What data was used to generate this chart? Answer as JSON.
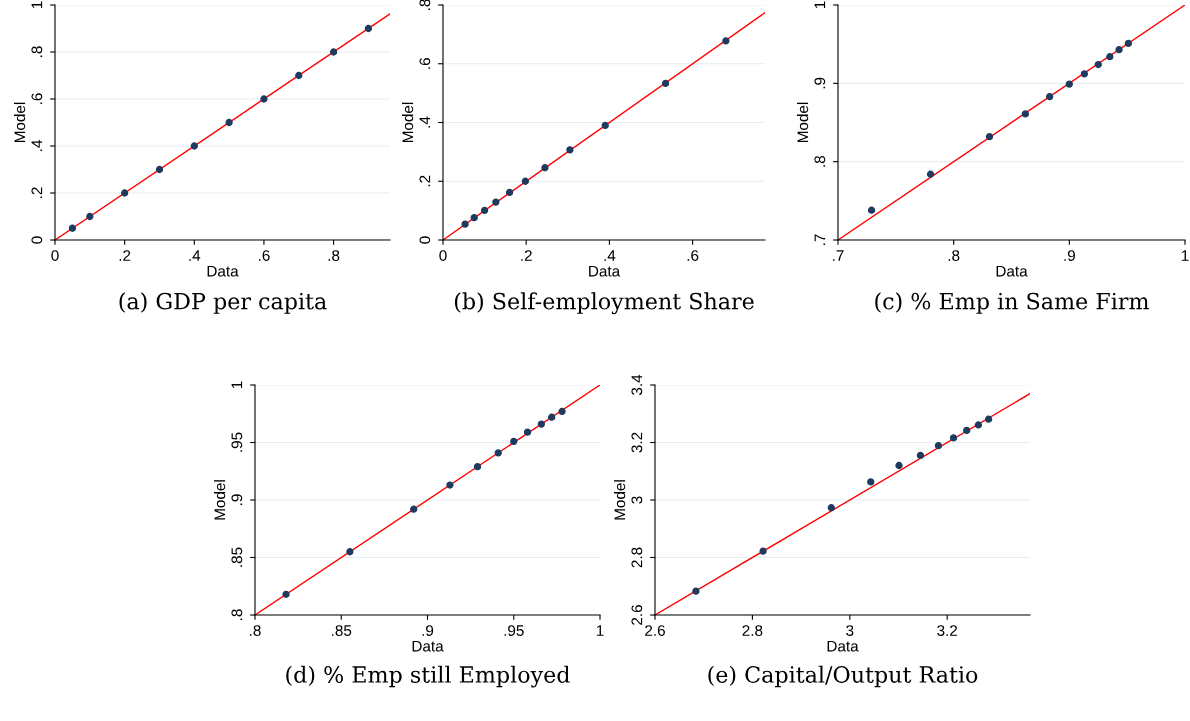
{
  "chart_data": [
    {
      "type": "scatter",
      "title": "(a) GDP per capita",
      "xlabel": "Data",
      "ylabel": "Model",
      "grid": "y",
      "xlim": [
        0,
        0.962
      ],
      "ylim": [
        0,
        1
      ],
      "xticks": [
        0,
        {
          "value": 0.2,
          "label": ".2"
        },
        {
          "value": 0.4,
          "label": ".4"
        },
        {
          "value": 0.6,
          "label": ".6"
        },
        {
          "value": 0.8,
          "label": ".8"
        }
      ],
      "yticks": [
        0,
        {
          "value": 0.2,
          "label": ".2"
        },
        {
          "value": 0.4,
          "label": ".4"
        },
        {
          "value": 0.6,
          "label": ".6"
        },
        {
          "value": 0.8,
          "label": ".8"
        },
        1
      ],
      "series": [
        {
          "type": "scatter",
          "marker": "circle",
          "color": "#1f3a5f",
          "x": [
            0.05,
            0.1,
            0.2,
            0.3,
            0.4,
            0.5,
            0.6,
            0.7,
            0.8,
            0.9
          ],
          "values": [
            0.05,
            0.1,
            0.2,
            0.3,
            0.4,
            0.5,
            0.6,
            0.7,
            0.8,
            0.9
          ]
        },
        {
          "type": "line",
          "color": "#ff0000",
          "x": [
            0,
            0.962
          ],
          "values": [
            0,
            0.962
          ]
        }
      ]
    },
    {
      "type": "scatter",
      "title": "(b) Self-employment Share",
      "xlabel": "Data",
      "ylabel": "Model",
      "grid": "y",
      "xlim": [
        0,
        0.774
      ],
      "ylim": [
        0,
        0.8
      ],
      "xticks": [
        0,
        {
          "value": 0.2,
          "label": ".2"
        },
        {
          "value": 0.4,
          "label": ".4"
        },
        {
          "value": 0.6,
          "label": ".6"
        }
      ],
      "yticks": [
        0,
        {
          "value": 0.2,
          "label": ".2"
        },
        {
          "value": 0.4,
          "label": ".4"
        },
        {
          "value": 0.6,
          "label": ".6"
        },
        {
          "value": 0.8,
          "label": ".8"
        }
      ],
      "series": [
        {
          "type": "scatter",
          "marker": "circle",
          "color": "#1f3a5f",
          "x": [
            0.053,
            0.075,
            0.1,
            0.127,
            0.16,
            0.198,
            0.245,
            0.305,
            0.39,
            0.535,
            0.68
          ],
          "values": [
            0.054,
            0.076,
            0.101,
            0.129,
            0.162,
            0.2,
            0.246,
            0.307,
            0.39,
            0.533,
            0.678
          ]
        },
        {
          "type": "line",
          "color": "#ff0000",
          "x": [
            0,
            0.774
          ],
          "values": [
            0,
            0.774
          ]
        }
      ]
    },
    {
      "type": "scatter",
      "title": "(c) % Emp in Same Firm",
      "xlabel": "Data",
      "ylabel": "Model",
      "grid": "y",
      "xlim": [
        0.7,
        1
      ],
      "ylim": [
        0.7,
        1
      ],
      "xticks": [
        {
          "value": 0.7,
          "label": ".7"
        },
        {
          "value": 0.8,
          "label": ".8"
        },
        {
          "value": 0.9,
          "label": ".9"
        },
        1
      ],
      "yticks": [
        {
          "value": 0.7,
          "label": ".7"
        },
        {
          "value": 0.8,
          "label": ".8"
        },
        {
          "value": 0.9,
          "label": ".9"
        },
        1
      ],
      "series": [
        {
          "type": "scatter",
          "marker": "circle",
          "color": "#1f3a5f",
          "x": [
            0.729,
            0.78,
            0.831,
            0.862,
            0.883,
            0.9,
            0.913,
            0.925,
            0.935,
            0.943,
            0.951
          ],
          "values": [
            0.738,
            0.784,
            0.832,
            0.861,
            0.883,
            0.899,
            0.912,
            0.924,
            0.934,
            0.943,
            0.951
          ]
        },
        {
          "type": "line",
          "color": "#ff0000",
          "x": [
            0.7,
            1
          ],
          "values": [
            0.7,
            1
          ]
        }
      ]
    },
    {
      "type": "scatter",
      "title": "(d) % Emp still Employed",
      "xlabel": "Data",
      "ylabel": "Model",
      "grid": "y",
      "xlim": [
        0.8,
        1
      ],
      "ylim": [
        0.8,
        1
      ],
      "xticks": [
        {
          "value": 0.8,
          "label": ".8"
        },
        {
          "value": 0.85,
          "label": ".85"
        },
        {
          "value": 0.9,
          "label": ".9"
        },
        {
          "value": 0.95,
          "label": ".95"
        },
        1
      ],
      "yticks": [
        {
          "value": 0.8,
          "label": ".8"
        },
        {
          "value": 0.85,
          "label": ".85"
        },
        {
          "value": 0.9,
          "label": ".9"
        },
        {
          "value": 0.95,
          "label": ".95"
        },
        1
      ],
      "series": [
        {
          "type": "scatter",
          "marker": "circle",
          "color": "#1f3a5f",
          "x": [
            0.818,
            0.855,
            0.892,
            0.913,
            0.929,
            0.941,
            0.95,
            0.958,
            0.966,
            0.972,
            0.978
          ],
          "values": [
            0.818,
            0.855,
            0.892,
            0.913,
            0.929,
            0.941,
            0.951,
            0.959,
            0.966,
            0.972,
            0.977
          ]
        },
        {
          "type": "line",
          "color": "#ff0000",
          "x": [
            0.8,
            1
          ],
          "values": [
            0.8,
            1
          ]
        }
      ]
    },
    {
      "type": "scatter",
      "title": "(e) Capital/Output Ratio",
      "xlabel": "Data",
      "ylabel": "Model",
      "grid": "y",
      "xlim": [
        2.6,
        3.37
      ],
      "ylim": [
        2.6,
        3.4
      ],
      "xticks": [
        2.6,
        2.8,
        3,
        3.2
      ],
      "yticks": [
        2.6,
        2.8,
        3,
        3.2,
        3.4
      ],
      "series": [
        {
          "type": "scatter",
          "marker": "circle",
          "color": "#1f3a5f",
          "x": [
            2.684,
            2.822,
            2.962,
            3.043,
            3.101,
            3.145,
            3.182,
            3.213,
            3.24,
            3.264,
            3.285
          ],
          "values": [
            2.683,
            2.822,
            2.973,
            3.063,
            3.12,
            3.155,
            3.189,
            3.216,
            3.242,
            3.261,
            3.281
          ]
        },
        {
          "type": "line",
          "color": "#ff0000",
          "x": [
            2.6,
            3.37
          ],
          "values": [
            2.6,
            3.37
          ]
        }
      ]
    }
  ]
}
